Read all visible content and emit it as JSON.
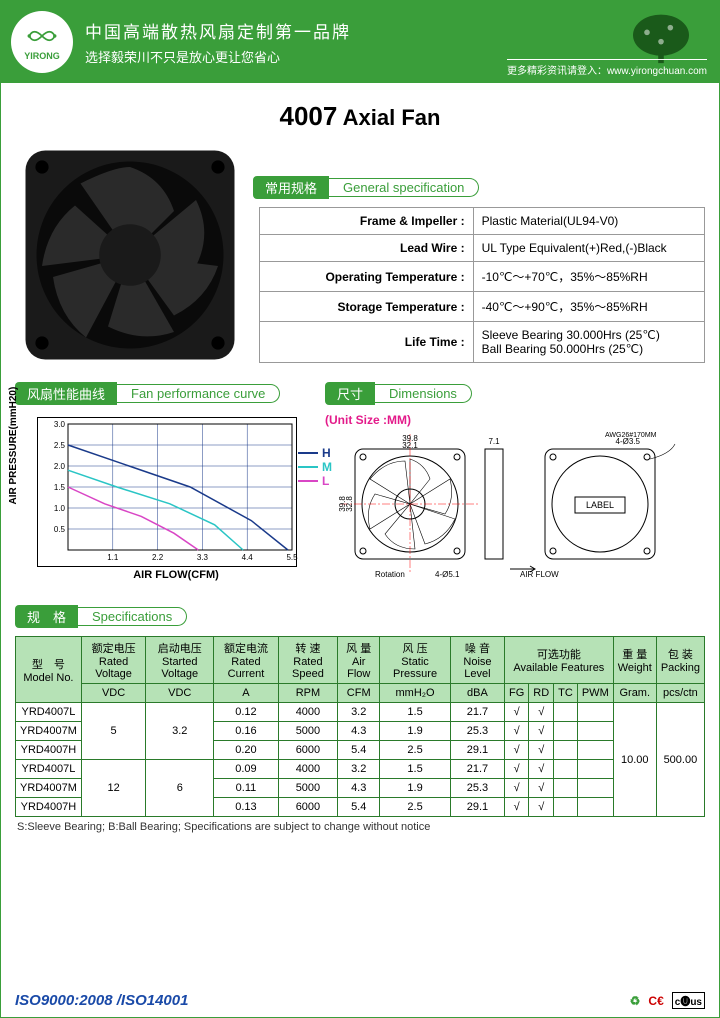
{
  "header": {
    "brand": "YIRONG",
    "line1": "中国高端散热风扇定制第一品牌",
    "line2": "选择毅荣川不只是放心更让您省心",
    "url_label": "更多精彩资讯请登入：www.yirongchuan.com"
  },
  "title": {
    "num": "4007",
    "text": "Axial Fan"
  },
  "general_spec": {
    "badge_cn": "常用规格",
    "badge_en": "General specification",
    "rows": [
      {
        "label": "Frame & Impeller :",
        "value": "Plastic Material(UL94-V0)"
      },
      {
        "label": "Lead Wire :",
        "value": "UL Type Equivalent(+)Red,(-)Black"
      },
      {
        "label": "Operating Temperature :",
        "value": "-10℃～+70℃，35%～85%RH"
      },
      {
        "label": "Storage Temperature :",
        "value": "-40℃～+90℃，35%～85%RH"
      },
      {
        "label": "Life Time :",
        "value": "Sleeve Bearing 30.000Hrs (25℃)\nBall Bearing 50.000Hrs (25℃)"
      }
    ]
  },
  "perf_curve": {
    "badge_cn": "风扇性能曲线",
    "badge_en": "Fan performance curve",
    "ylabel": "AIR PRESSURE(mmH20)",
    "xlabel": "AIR FLOW(CFM)",
    "xlim": [
      0,
      5.5
    ],
    "ylim": [
      0,
      3.0
    ],
    "xticks": [
      1.1,
      2.2,
      3.3,
      4.4,
      5.5
    ],
    "yticks": [
      0.5,
      1.0,
      1.5,
      2.0,
      2.5,
      3.0
    ],
    "series": [
      {
        "name": "H",
        "color": "#1a3a8a",
        "points": [
          [
            0,
            2.5
          ],
          [
            1.5,
            2.0
          ],
          [
            3.0,
            1.5
          ],
          [
            4.5,
            0.7
          ],
          [
            5.4,
            0
          ]
        ]
      },
      {
        "name": "M",
        "color": "#2ac5c5",
        "points": [
          [
            0,
            1.9
          ],
          [
            1.2,
            1.5
          ],
          [
            2.5,
            1.1
          ],
          [
            3.6,
            0.6
          ],
          [
            4.3,
            0
          ]
        ]
      },
      {
        "name": "L",
        "color": "#d946c5",
        "points": [
          [
            0,
            1.5
          ],
          [
            0.9,
            1.1
          ],
          [
            1.8,
            0.8
          ],
          [
            2.6,
            0.4
          ],
          [
            3.2,
            0
          ]
        ]
      }
    ],
    "grid_color": "#1a3a8a",
    "bg": "#ffffff"
  },
  "dimensions": {
    "badge_cn": "尺寸",
    "badge_en": "Dimensions",
    "unit_label": "(Unit Size :MM)",
    "width_outer": "39.8",
    "width_inner": "32.1",
    "height_outer": "39.8",
    "height_inner": "32.8",
    "thickness": "7.1",
    "hole": "4-Ø3.5",
    "hole2": "4-Ø5.1",
    "wire": "AWG26#170MM",
    "rotation": "Rotation",
    "airflow": "AIR FLOW",
    "label_text": "LABEL"
  },
  "specifications": {
    "badge_cn": "规　格",
    "badge_en": "Specifications",
    "columns_cn": [
      "型　号",
      "额定电压",
      "启动电压",
      "额定电流",
      "转 速",
      "风 量",
      "风 压",
      "噪 音",
      "可选功能",
      "重 量",
      "包 装"
    ],
    "columns_en": [
      "Model No.",
      "Rated Voltage",
      "Started Voltage",
      "Rated Current",
      "Rated Speed",
      "Air Flow",
      "Static Pressure",
      "Noise Level",
      "Available Features",
      "Weight",
      "Packing"
    ],
    "units": [
      "",
      "VDC",
      "VDC",
      "A",
      "RPM",
      "CFM",
      "mmH₂O",
      "dBA",
      "FG",
      "RD",
      "TC",
      "PWM",
      "Gram.",
      "pcs/ctn"
    ],
    "rows": [
      {
        "model": "YRD4007L",
        "volt": "5",
        "start": "3.2",
        "curr": "0.12",
        "rpm": "4000",
        "cfm": "3.2",
        "press": "1.5",
        "noise": "21.7",
        "fg": "√",
        "rd": "√",
        "tc": "",
        "pwm": "",
        "weight": "10.00",
        "pack": "500.00"
      },
      {
        "model": "YRD4007M",
        "volt": "5",
        "start": "3.2",
        "curr": "0.16",
        "rpm": "5000",
        "cfm": "4.3",
        "press": "1.9",
        "noise": "25.3",
        "fg": "√",
        "rd": "√",
        "tc": "",
        "pwm": "",
        "weight": "10.00",
        "pack": "500.00"
      },
      {
        "model": "YRD4007H",
        "volt": "5",
        "start": "3.2",
        "curr": "0.20",
        "rpm": "6000",
        "cfm": "5.4",
        "press": "2.5",
        "noise": "29.1",
        "fg": "√",
        "rd": "√",
        "tc": "",
        "pwm": "",
        "weight": "10.00",
        "pack": "500.00"
      },
      {
        "model": "YRD4007L",
        "volt": "12",
        "start": "6",
        "curr": "0.09",
        "rpm": "4000",
        "cfm": "3.2",
        "press": "1.5",
        "noise": "21.7",
        "fg": "√",
        "rd": "√",
        "tc": "",
        "pwm": "",
        "weight": "10.00",
        "pack": "500.00"
      },
      {
        "model": "YRD4007M",
        "volt": "12",
        "start": "6",
        "curr": "0.11",
        "rpm": "5000",
        "cfm": "4.3",
        "press": "1.9",
        "noise": "25.3",
        "fg": "√",
        "rd": "√",
        "tc": "",
        "pwm": "",
        "weight": "10.00",
        "pack": "500.00"
      },
      {
        "model": "YRD4007H",
        "volt": "12",
        "start": "6",
        "curr": "0.13",
        "rpm": "6000",
        "cfm": "5.4",
        "press": "2.5",
        "noise": "29.1",
        "fg": "√",
        "rd": "√",
        "tc": "",
        "pwm": "",
        "weight": "10.00",
        "pack": "500.00"
      }
    ],
    "footnote": "S:Sleeve Bearing; B:Ball Bearing; Specifications are subject to change without notice"
  },
  "footer": {
    "iso": "ISO9000:2008 /ISO14001",
    "certs": [
      "RoHS",
      "CE",
      "UL"
    ]
  },
  "colors": {
    "brand_green": "#3a9e3a",
    "light_green": "#b6e2b6",
    "pink": "#e31b8a",
    "blue": "#1a3a8a",
    "cyan": "#2ac5c5",
    "magenta": "#d946c5"
  }
}
